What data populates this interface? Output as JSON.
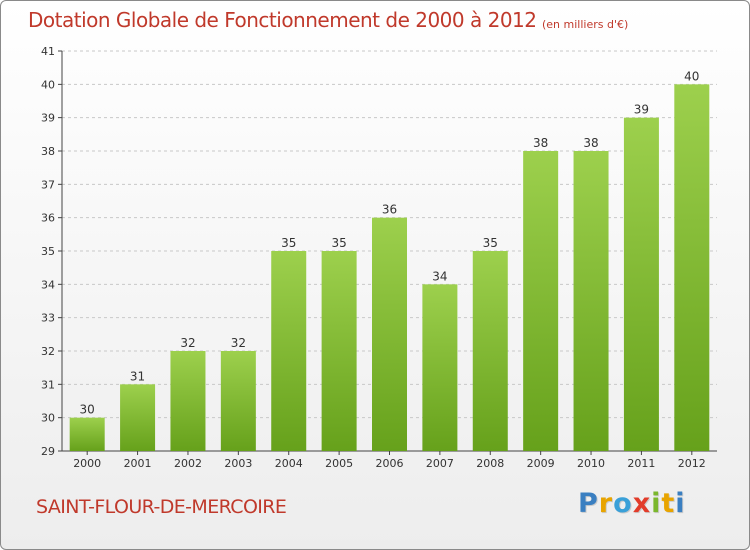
{
  "header": {
    "title": "Dotation Globale de Fonctionnement de 2000 à 2012",
    "unit": "(en milliers d'€)"
  },
  "footer": {
    "commune": "SAINT-FLOUR-DE-MERCOIRE",
    "logo_letters": [
      {
        "char": "P",
        "color": "#3a7fc1"
      },
      {
        "char": "r",
        "color": "#e8a400"
      },
      {
        "char": "o",
        "color": "#3aa0d8"
      },
      {
        "char": "x",
        "color": "#e23c2a"
      },
      {
        "char": "i",
        "color": "#7bb72d"
      },
      {
        "char": "t",
        "color": "#e8a400"
      },
      {
        "char": "i",
        "color": "#3a7fc1"
      }
    ]
  },
  "colors": {
    "bar_top": "#9dd04d",
    "bar_bottom": "#66a11b",
    "grid": "#c8c8c8",
    "text": "#333333",
    "accent": "#c0392b"
  },
  "chart_data": {
    "type": "bar",
    "categories": [
      "2000",
      "2001",
      "2002",
      "2003",
      "2004",
      "2005",
      "2006",
      "2007",
      "2008",
      "2009",
      "2010",
      "2011",
      "2012"
    ],
    "values": [
      30,
      31,
      32,
      32,
      35,
      35,
      36,
      34,
      35,
      38,
      38,
      39,
      40
    ],
    "title": "Dotation Globale de Fonctionnement de 2000 à 2012",
    "subtitle": "(en milliers d'€)",
    "ylim": [
      29,
      41
    ],
    "yticks": [
      29,
      30,
      31,
      32,
      33,
      34,
      35,
      36,
      37,
      38,
      39,
      40,
      41
    ],
    "grid": true,
    "data_labels": true
  }
}
